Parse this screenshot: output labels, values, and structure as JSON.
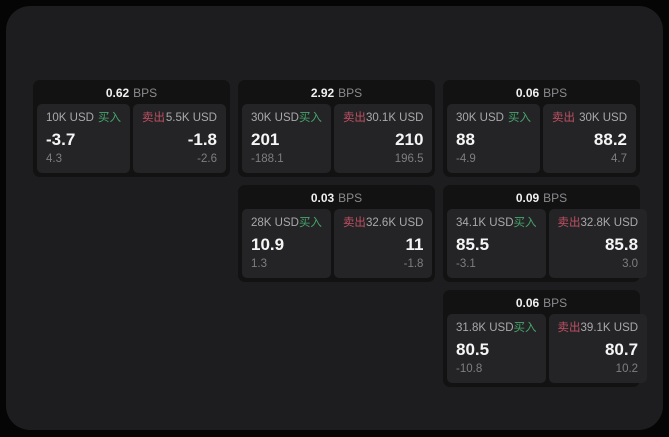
{
  "labels": {
    "bps_unit": "BPS",
    "buy": "买入",
    "sell": "卖出"
  },
  "colors": {
    "background": "#050505",
    "panel": "#1d1d1f",
    "card": "#121213",
    "subpanel": "#242426",
    "buy_green": "#46a46c",
    "sell_red": "#bf5064"
  },
  "cards": [
    {
      "bps": "0.62",
      "buy": {
        "size": "10K USD",
        "value": "-3.7",
        "change": "4.3"
      },
      "sell": {
        "size": "5.5K USD",
        "value": "-1.8",
        "change": "-2.6"
      }
    },
    {
      "bps": "2.92",
      "buy": {
        "size": "30K USD",
        "value": "201",
        "change": "-188.1"
      },
      "sell": {
        "size": "30.1K USD",
        "value": "210",
        "change": "196.5"
      }
    },
    {
      "bps": "0.06",
      "buy": {
        "size": "30K USD",
        "value": "88",
        "change": "-4.9"
      },
      "sell": {
        "size": "30K USD",
        "value": "88.2",
        "change": "4.7"
      }
    },
    {
      "bps": "0.03",
      "buy": {
        "size": "28K USD",
        "value": "10.9",
        "change": "1.3"
      },
      "sell": {
        "size": "32.6K USD",
        "value": "11",
        "change": "-1.8"
      }
    },
    {
      "bps": "0.09",
      "buy": {
        "size": "34.1K USD",
        "value": "85.5",
        "change": "-3.1"
      },
      "sell": {
        "size": "32.8K USD",
        "value": "85.8",
        "change": "3.0"
      }
    },
    {
      "bps": "0.06",
      "buy": {
        "size": "31.8K USD",
        "value": "80.5",
        "change": "-10.8"
      },
      "sell": {
        "size": "39.1K USD",
        "value": "80.7",
        "change": "10.2"
      }
    }
  ]
}
